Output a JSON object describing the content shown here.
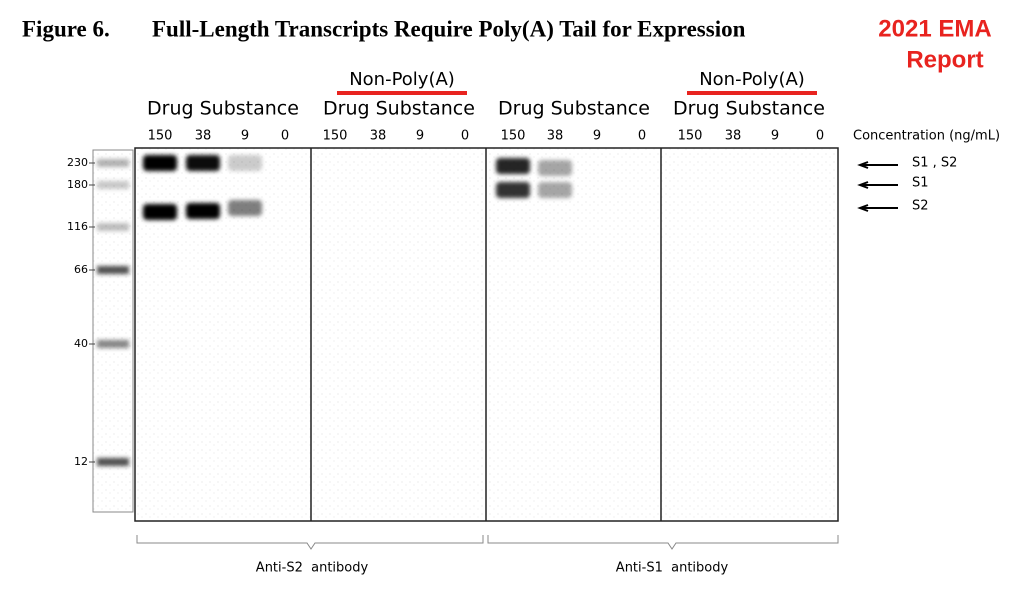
{
  "title": {
    "figure": "Figure 6.",
    "text": "Full-Length Transcripts Require Poly(A) Tail for Expression"
  },
  "badge": [
    "2021 EMA",
    "Report"
  ],
  "panels": [
    {
      "name": "Drug Substance",
      "concentrations": [
        150,
        38,
        9,
        0
      ]
    },
    {
      "tag": "Non-Poly(A)",
      "name": "Drug Substance",
      "concentrations": [
        150,
        38,
        9,
        0
      ]
    },
    {
      "name": "Drug Substance",
      "concentrations": [
        150,
        38,
        9,
        0
      ]
    },
    {
      "tag": "Non-Poly(A)",
      "name": "Drug Substance",
      "concentrations": [
        150,
        38,
        9,
        0
      ]
    }
  ],
  "concentration_label": "Concentration (ng/mL)",
  "markers": [
    230,
    180,
    116,
    66,
    40,
    12
  ],
  "arrows": [
    "S1 , S2",
    "S1",
    "S2"
  ],
  "antibodies": [
    "Anti-S2  antibody",
    "Anti-S1  antibody"
  ]
}
